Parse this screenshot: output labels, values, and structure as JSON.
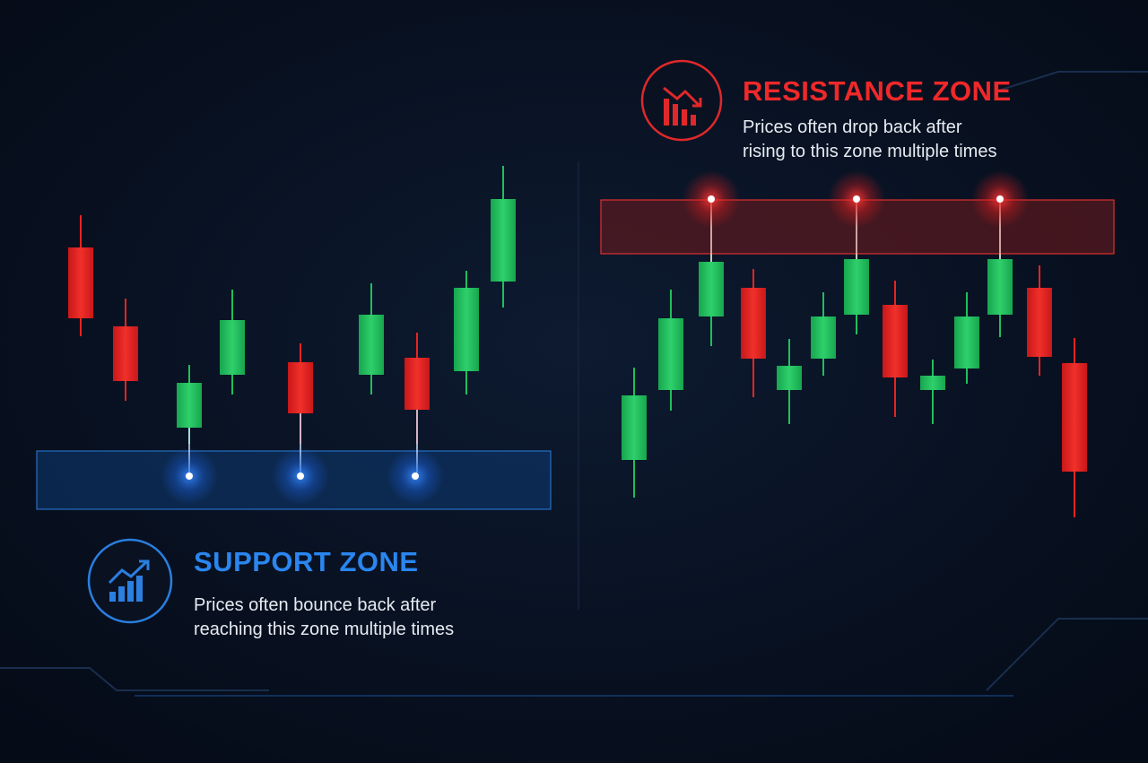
{
  "resistance": {
    "title": "RESISTANCE ZONE",
    "description": "Prices often drop back after\nrising to this zone multiple times"
  },
  "support": {
    "title": "SUPPORT ZONE",
    "description": "Prices often bounce back after\nreaching this zone multiple times"
  }
}
